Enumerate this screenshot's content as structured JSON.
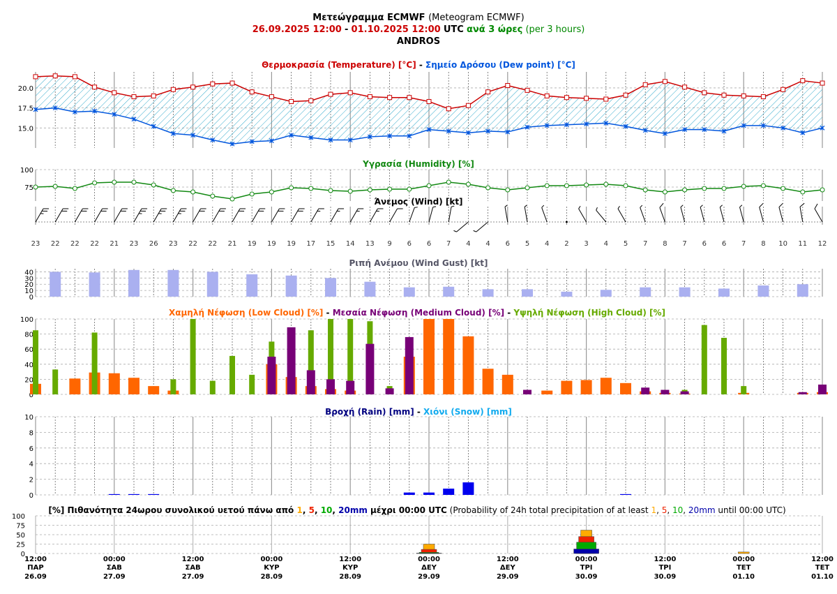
{
  "header": {
    "title_gr": "Μετεώγραμμα ECMWF",
    "title_en": "(Meteogram ECMWF)",
    "period_start": "26.09.2025 12:00",
    "period_sep": "-",
    "period_end": "01.10.2025 12:00",
    "period_utc": "UTC",
    "step_gr": "ανά 3 ώρες",
    "step_en": "(per 3 hours)",
    "location": "ANDROS"
  },
  "colors": {
    "temperature": "#cc0000",
    "dewpoint": "#0055dd",
    "humidity": "#118811",
    "gust": "#aab0f0",
    "low_cloud": "#ff6600",
    "medium_cloud": "#770077",
    "high_cloud": "#66aa00",
    "rain": "#0000ee",
    "snow": "#11aaee",
    "p1": "#ffaa00",
    "p5": "#ee2200",
    "p10": "#00aa00",
    "p20": "#0000aa"
  },
  "panels": {
    "temperature": {
      "title_a": "Θερμοκρασία (Temperature) [°C]",
      "title_sep": " - ",
      "title_b": "Σημείο Δρόσου (Dew point) [°C]",
      "ticks": [
        "15.0",
        "17.5",
        "20.0"
      ]
    },
    "humidity": {
      "title": "Υγρασία (Humidity) [%]",
      "ticks": [
        "75",
        "100"
      ]
    },
    "wind": {
      "title": "Άνεμος (Wind) [kt]"
    },
    "gust": {
      "title": "Ριπή Ανέμου (Wind Gust) [kt]",
      "ticks": [
        "0",
        "10",
        "20",
        "30",
        "40"
      ]
    },
    "cloud": {
      "title_low": "Χαμηλή Νέφωση (Low Cloud) [%]",
      "title_med": "Μεσαία Νέφωση (Medium Cloud) [%]",
      "title_high": "Υψηλή Νέφωση (High Cloud) [%]",
      "sep": " - ",
      "ticks": [
        "0",
        "20",
        "40",
        "60",
        "80",
        "100"
      ]
    },
    "rain": {
      "title_rain": "Βροχή (Rain) [mm]",
      "title_sep": " - ",
      "title_snow": "Χιόνι (Snow) [mm]",
      "ticks": [
        "0",
        "2",
        "4",
        "6",
        "8",
        "10"
      ]
    },
    "probability": {
      "title_gr_a": "[%] Πιθανότητα 24ωρου συνολικού υετού πάνω από ",
      "t1": "1",
      "c1": ", ",
      "t5": "5",
      "c2": ", ",
      "t10": "10",
      "c3": ", ",
      "t20": "20mm",
      "title_gr_b": " μέχρι 00:00 UTC",
      "title_en_a": " (Probability of 24h total precipitation of at least ",
      "e1": "1",
      "ec1": ", ",
      "e5": "5",
      "ec2": ", ",
      "e10": "10",
      "ec3": ", ",
      "e20": "20mm",
      "title_en_b": " until 00:00 UTC)",
      "ticks": [
        "0",
        "25",
        "50",
        "75",
        "100"
      ]
    }
  },
  "chart_data": {
    "type": "meteogram",
    "step_hours": 3,
    "x_labels": [
      {
        "time": "12:00",
        "day": "ΠΑΡ",
        "date": "26.09"
      },
      {
        "time": "00:00",
        "day": "ΣΑΒ",
        "date": "27.09"
      },
      {
        "time": "12:00",
        "day": "ΣΑΒ",
        "date": "27.09"
      },
      {
        "time": "00:00",
        "day": "ΚΥΡ",
        "date": "28.09"
      },
      {
        "time": "12:00",
        "day": "ΚΥΡ",
        "date": "28.09"
      },
      {
        "time": "00:00",
        "day": "ΔΕΥ",
        "date": "29.09"
      },
      {
        "time": "12:00",
        "day": "ΔΕΥ",
        "date": "29.09"
      },
      {
        "time": "00:00",
        "day": "ΤΡΙ",
        "date": "30.09"
      },
      {
        "time": "12:00",
        "day": "ΤΡΙ",
        "date": "30.09"
      },
      {
        "time": "00:00",
        "day": "ΤΕΤ",
        "date": "01.10"
      },
      {
        "time": "12:00",
        "day": "ΤΕΤ",
        "date": "01.10"
      }
    ],
    "temperature": [
      21.4,
      21.5,
      21.4,
      20.1,
      19.4,
      18.9,
      19.0,
      19.8,
      20.1,
      20.5,
      20.6,
      19.5,
      18.9,
      18.3,
      18.4,
      19.2,
      19.4,
      18.9,
      18.8,
      18.8,
      18.3,
      17.4,
      17.8,
      19.5,
      20.3,
      19.7,
      19.0,
      18.8,
      18.7,
      18.6,
      19.1,
      20.4,
      20.8,
      20.1,
      19.4,
      19.1,
      19.0,
      18.9,
      19.8,
      20.9,
      20.6
    ],
    "dewpoint": [
      17.3,
      17.5,
      17.0,
      17.1,
      16.7,
      16.1,
      15.2,
      14.3,
      14.1,
      13.5,
      13.0,
      13.3,
      13.4,
      14.1,
      13.8,
      13.5,
      13.5,
      13.9,
      14.0,
      14.0,
      14.8,
      14.6,
      14.4,
      14.6,
      14.5,
      15.1,
      15.3,
      15.4,
      15.5,
      15.6,
      15.2,
      14.7,
      14.3,
      14.8,
      14.8,
      14.6,
      15.3,
      15.3,
      15.0,
      14.4,
      15.0
    ],
    "temp_ylim": [
      12.5,
      22.0
    ],
    "humidity": [
      75,
      76,
      73,
      81,
      82,
      82,
      78,
      70,
      68,
      62,
      58,
      65,
      68,
      74,
      73,
      70,
      69,
      71,
      72,
      72,
      77,
      82,
      79,
      74,
      71,
      74,
      77,
      77,
      78,
      79,
      77,
      71,
      68,
      71,
      73,
      73,
      76,
      77,
      73,
      68,
      71
    ],
    "humidity_ylim": [
      55,
      100
    ],
    "wind_speed": [
      23,
      22,
      22,
      22,
      21,
      23,
      26,
      23,
      22,
      22,
      21,
      19,
      19,
      19,
      17,
      15,
      14,
      13,
      9,
      6,
      6,
      7,
      4,
      4,
      6,
      5,
      4,
      2,
      3,
      4,
      5,
      7,
      8,
      7,
      6,
      6,
      7,
      8,
      10,
      11,
      12
    ],
    "wind_dir": [
      30,
      30,
      30,
      30,
      30,
      30,
      30,
      30,
      30,
      30,
      30,
      30,
      30,
      30,
      30,
      30,
      30,
      30,
      30,
      20,
      15,
      10,
      230,
      230,
      350,
      350,
      340,
      330,
      330,
      320,
      330,
      340,
      340,
      345,
      345,
      345,
      345,
      345,
      345,
      350,
      330
    ],
    "gust": [
      40,
      39,
      43,
      43,
      40,
      36,
      34,
      30,
      24,
      15,
      16,
      12,
      12,
      8,
      11,
      15,
      15,
      13,
      18,
      20
    ],
    "gust_ylim": [
      0,
      45
    ],
    "low_cloud": [
      14,
      0,
      21,
      29,
      28,
      22,
      11,
      5,
      0,
      0,
      0,
      0,
      40,
      23,
      11,
      7,
      5,
      0,
      0,
      50,
      100,
      100,
      77,
      34,
      26,
      0,
      5,
      18,
      19,
      22,
      15,
      4,
      2,
      1,
      0,
      0,
      2,
      0,
      0,
      2,
      3
    ],
    "medium_cloud": [
      0,
      0,
      0,
      0,
      0,
      0,
      0,
      0,
      0,
      0,
      0,
      0,
      50,
      89,
      32,
      20,
      18,
      67,
      8,
      76,
      0,
      0,
      0,
      0,
      0,
      6,
      0,
      0,
      0,
      0,
      0,
      9,
      6,
      4,
      0,
      0,
      0,
      0,
      0,
      3,
      13
    ],
    "high_cloud": [
      85,
      33,
      0,
      82,
      0,
      0,
      0,
      20,
      100,
      18,
      51,
      26,
      70,
      0,
      85,
      100,
      100,
      97,
      11,
      0,
      0,
      0,
      0,
      0,
      0,
      0,
      0,
      0,
      0,
      0,
      0,
      0,
      0,
      6,
      92,
      75,
      11,
      0,
      0,
      0,
      0
    ],
    "rain": [
      0.1,
      0.1,
      0.1,
      0.3,
      0.3,
      0.8,
      1.6,
      0.1
    ],
    "rain_steps": [
      4,
      5,
      6,
      19,
      20,
      21,
      22,
      30
    ],
    "snow": [],
    "rain_ylim": [
      0,
      10
    ],
    "probability": {
      "days": [
        "29.09",
        "30.09",
        "01.10"
      ],
      "p1": [
        25,
        62,
        4
      ],
      "p5": [
        11,
        45,
        0
      ],
      "p10": [
        3,
        30,
        0
      ],
      "p20": [
        1,
        12,
        0
      ]
    }
  }
}
